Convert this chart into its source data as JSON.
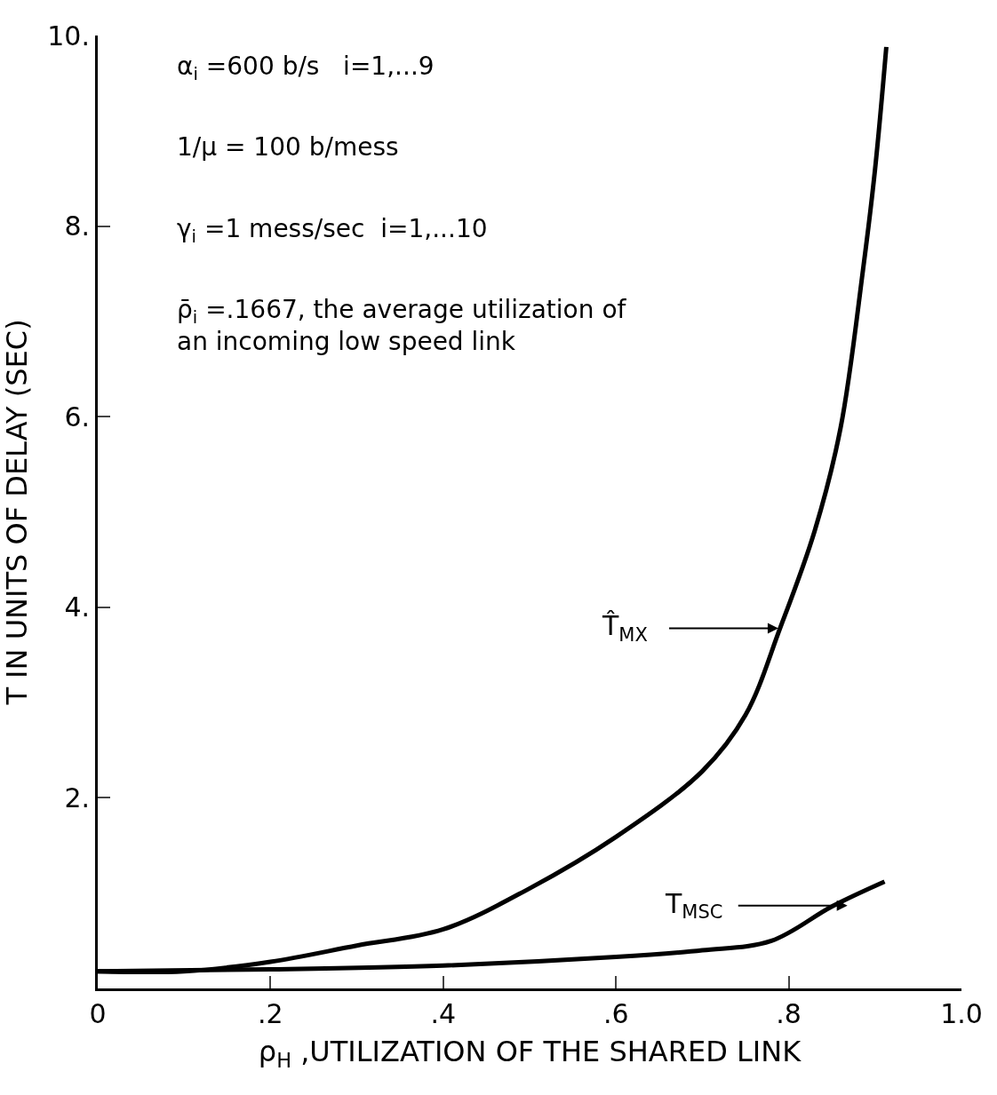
{
  "chart_data": {
    "type": "line",
    "xlabel": "ρ$_{H}$ ,UTILIZATION OF THE SHARED LINK",
    "ylabel": "T IN UNITS OF DELAY (SEC)",
    "xlim": [
      0,
      1.0
    ],
    "ylim": [
      0,
      10
    ],
    "xticks": [
      {
        "value": 0,
        "label": "0"
      },
      {
        "value": 0.2,
        "label": ".2"
      },
      {
        "value": 0.4,
        "label": ".4"
      },
      {
        "value": 0.6,
        "label": ".6"
      },
      {
        "value": 0.8,
        "label": ".8"
      },
      {
        "value": 1.0,
        "label": "1.0"
      }
    ],
    "yticks": [
      {
        "value": 2,
        "label": "2."
      },
      {
        "value": 4,
        "label": "4."
      },
      {
        "value": 6,
        "label": "6."
      },
      {
        "value": 8,
        "label": "8."
      },
      {
        "value": 10,
        "label": "10."
      }
    ],
    "marker": "none",
    "line_style": "solid",
    "series": [
      {
        "color": "#000000",
        "x": [
          0,
          0.1,
          0.2,
          0.3,
          0.4,
          0.5,
          0.6,
          0.7,
          0.75,
          0.79,
          0.83,
          0.86,
          0.886,
          0.9,
          0.913
        ],
        "values": [
          0.18,
          0.18,
          0.28,
          0.45,
          0.62,
          1.05,
          1.59,
          2.28,
          2.87,
          3.78,
          4.8,
          5.88,
          7.54,
          8.6,
          9.88
        ]
      },
      {
        "color": "#000000",
        "x": [
          0,
          0.2,
          0.4,
          0.6,
          0.7,
          0.78,
          0.85,
          0.911
        ],
        "values": [
          0.18,
          0.2,
          0.24,
          0.33,
          0.4,
          0.5,
          0.86,
          1.12
        ]
      }
    ],
    "annotations": [
      "α$_{i}$ =600 b/s   i=1,...9",
      "1/μ = 100 b/mess",
      "γ$_{i}$ =1 mess/sec  i=1,...10",
      "ρ̄$_{i}$ =.1667, the average utilization of\nan incoming low speed link",
      "T̂$_{MX}$",
      "T$_{MSC}$"
    ]
  }
}
